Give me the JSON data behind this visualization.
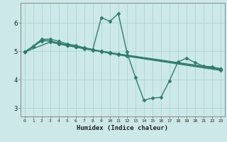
{
  "title": "",
  "xlabel": "Humidex (Indice chaleur)",
  "ylabel": "",
  "background_color": "#cce8e8",
  "grid_color": "#aed4d4",
  "line_color": "#2e7d6e",
  "spine_color": "#888888",
  "xlim": [
    -0.5,
    23.5
  ],
  "ylim": [
    2.7,
    6.7
  ],
  "xticks": [
    0,
    1,
    2,
    3,
    4,
    5,
    6,
    7,
    8,
    9,
    10,
    11,
    12,
    13,
    14,
    15,
    16,
    17,
    18,
    19,
    20,
    21,
    22,
    23
  ],
  "yticks": [
    3,
    4,
    5,
    6
  ],
  "series": [
    {
      "x": [
        0,
        1,
        2,
        3,
        4,
        5,
        6,
        7,
        8,
        9,
        10,
        11,
        12,
        13,
        14,
        15,
        16,
        17,
        18,
        19,
        20,
        21,
        22,
        23
      ],
      "y": [
        4.97,
        5.18,
        5.42,
        5.42,
        5.35,
        5.25,
        5.2,
        5.12,
        5.06,
        6.18,
        6.05,
        6.32,
        4.97,
        4.08,
        3.27,
        3.35,
        3.37,
        3.95,
        4.62,
        4.75,
        4.6,
        4.47,
        4.45,
        4.38
      ],
      "marker": "D",
      "markersize": 2.5,
      "lw": 1.0
    },
    {
      "x": [
        0,
        1,
        2,
        3,
        4,
        5,
        6,
        7,
        8,
        9,
        10,
        11,
        12,
        23
      ],
      "y": [
        4.97,
        5.15,
        5.38,
        5.36,
        5.28,
        5.22,
        5.16,
        5.1,
        5.05,
        5.0,
        4.95,
        4.9,
        4.86,
        4.38
      ],
      "marker": "D",
      "markersize": 2.5,
      "lw": 1.0
    },
    {
      "x": [
        0,
        2,
        3,
        4,
        5,
        6,
        7,
        8,
        9,
        10,
        11,
        12,
        23
      ],
      "y": [
        4.97,
        5.36,
        5.36,
        5.28,
        5.21,
        5.15,
        5.09,
        5.04,
        4.99,
        4.94,
        4.89,
        4.84,
        4.35
      ],
      "marker": "D",
      "markersize": 2.5,
      "lw": 1.0
    },
    {
      "x": [
        0,
        3,
        4,
        5,
        6,
        7,
        8,
        9,
        10,
        11,
        12,
        23
      ],
      "y": [
        4.97,
        5.32,
        5.25,
        5.19,
        5.14,
        5.08,
        5.03,
        4.98,
        4.92,
        4.87,
        4.82,
        4.32
      ],
      "marker": "D",
      "markersize": 2.5,
      "lw": 1.0
    }
  ]
}
